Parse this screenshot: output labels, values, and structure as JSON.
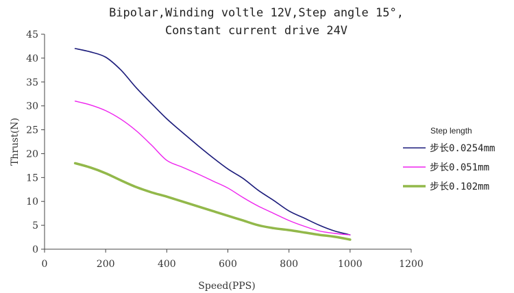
{
  "chart_data": {
    "type": "line",
    "title_lines": [
      "Bipolar,Winding voltle 12V,Step angle 15°,",
      "Constant current drive 24V"
    ],
    "xlabel": "Speed(PPS)",
    "ylabel": "Thrust(N)",
    "xlim": [
      0,
      1200
    ],
    "ylim": [
      0,
      45
    ],
    "x_ticks": [
      0,
      200,
      400,
      600,
      800,
      1000,
      1200
    ],
    "y_ticks": [
      0,
      5,
      10,
      15,
      20,
      25,
      30,
      35,
      40,
      45
    ],
    "grid": false,
    "legend": {
      "title": "Step length",
      "position": "right"
    },
    "series": [
      {
        "name": "步长0.0254mm",
        "color": "#1a1a7a",
        "line_width": 1.6,
        "x": [
          100,
          150,
          200,
          250,
          300,
          350,
          400,
          450,
          500,
          550,
          600,
          650,
          700,
          750,
          800,
          850,
          900,
          950,
          1000
        ],
        "y": [
          42,
          41.3,
          40.2,
          37.5,
          33.8,
          30.5,
          27.3,
          24.5,
          21.8,
          19.2,
          16.8,
          14.8,
          12.3,
          10.2,
          8,
          6.5,
          5,
          3.8,
          3
        ]
      },
      {
        "name": "步长0.051mm",
        "color": "#ee22ee",
        "line_width": 1.4,
        "x": [
          100,
          150,
          200,
          250,
          300,
          350,
          400,
          450,
          500,
          550,
          600,
          650,
          700,
          750,
          800,
          850,
          900,
          950,
          1000
        ],
        "y": [
          31,
          30.2,
          29,
          27.2,
          24.8,
          21.8,
          18.6,
          17.2,
          15.8,
          14.3,
          12.8,
          10.8,
          9.0,
          7.5,
          6.0,
          4.8,
          3.8,
          3.3,
          3.0
        ]
      },
      {
        "name": "步长0.102mm",
        "color": "#92b84a",
        "line_width": 3.5,
        "x": [
          100,
          150,
          200,
          250,
          300,
          350,
          400,
          450,
          500,
          550,
          600,
          650,
          700,
          750,
          800,
          850,
          900,
          950,
          1000
        ],
        "y": [
          18,
          17.1,
          15.9,
          14.4,
          13,
          11.9,
          11,
          10,
          9,
          8,
          7,
          6,
          5,
          4.4,
          4,
          3.5,
          3,
          2.6,
          2
        ]
      }
    ]
  }
}
